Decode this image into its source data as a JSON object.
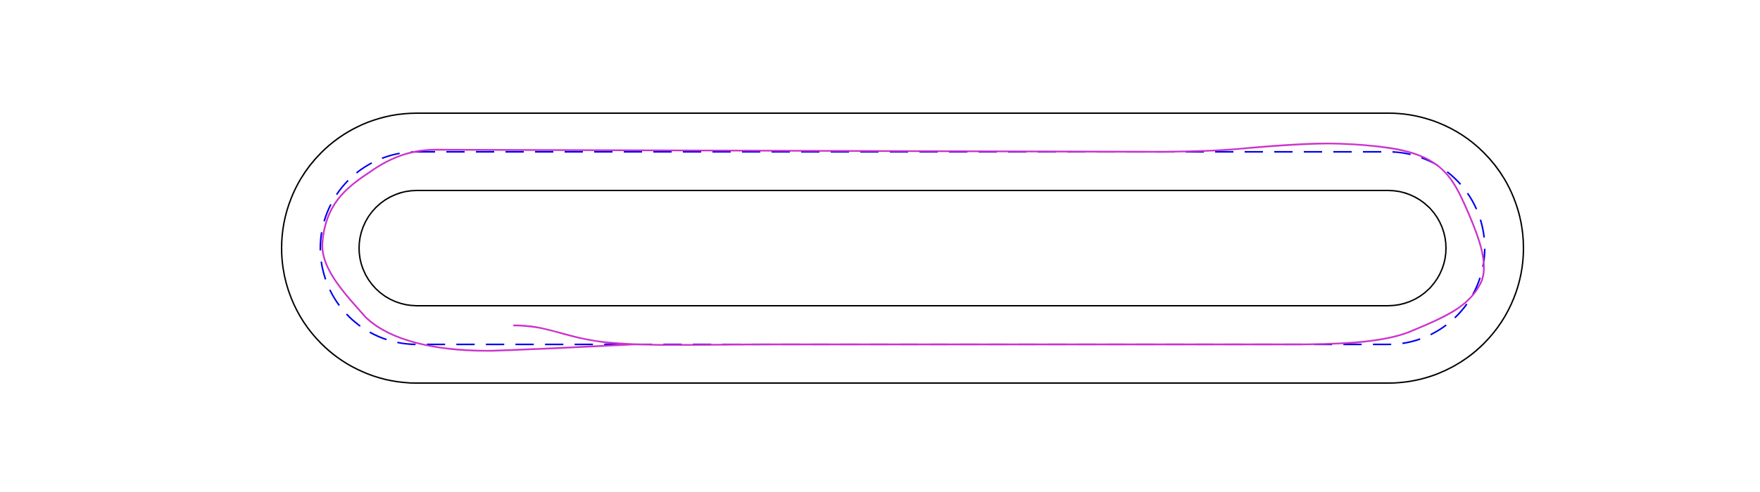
{
  "diagram": {
    "type": "race-track-trajectory",
    "elements": [
      {
        "name": "outer-boundary",
        "style": "solid",
        "color": "#000000"
      },
      {
        "name": "inner-boundary",
        "style": "solid",
        "color": "#000000"
      },
      {
        "name": "reference-centerline",
        "style": "dashed",
        "color": "#0000ee"
      },
      {
        "name": "driven-trajectory",
        "style": "solid",
        "color": "#cc33cc"
      }
    ]
  }
}
